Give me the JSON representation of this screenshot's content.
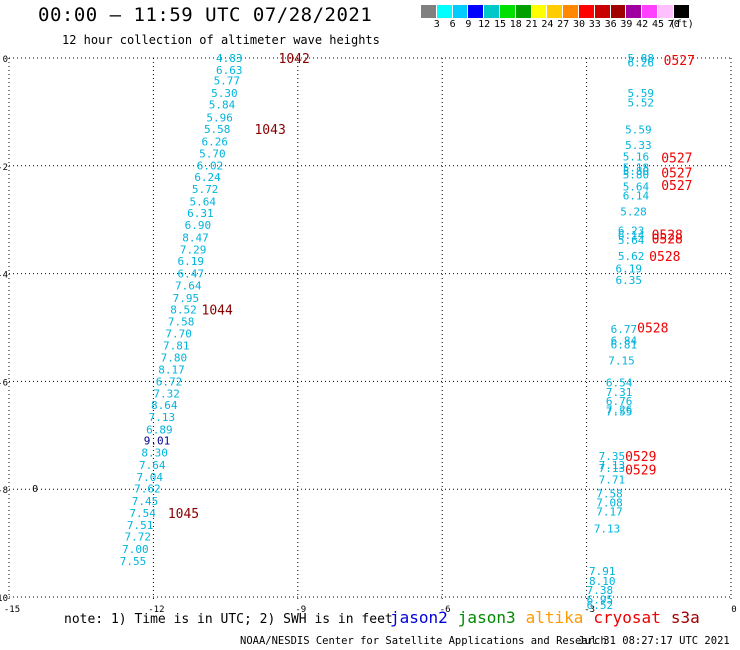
{
  "header": {
    "title": "00:00 – 11:59 UTC 07/28/2021",
    "subtitle": "12 hour collection of altimeter wave heights"
  },
  "scale": {
    "colors": [
      "#808080",
      "#00ffff",
      "#00ccff",
      "#0000ff",
      "#00c8c8",
      "#00e000",
      "#00a000",
      "#ffff00",
      "#ffcc00",
      "#ff8800",
      "#ff0000",
      "#c80000",
      "#a00000",
      "#a000a0",
      "#ff40ff",
      "#ffc0ff",
      "#000000"
    ],
    "labels": [
      "3",
      "6",
      "9",
      "12",
      "15",
      "18",
      "21",
      "24",
      "27",
      "30",
      "33",
      "36",
      "39",
      "42",
      "45",
      "70",
      "(ft)"
    ]
  },
  "chart_data": {
    "type": "scatter",
    "title": "00:00 – 11:59 UTC 07/28/2021",
    "subtitle": "12 hour collection of altimeter wave heights",
    "xlim": [
      -15,
      0
    ],
    "ylim": [
      -10,
      0
    ],
    "x_ticks": [
      "-15",
      "-12",
      "-9",
      "-6",
      "-3",
      "0"
    ],
    "y_ticks": [
      "0",
      "-2",
      "-4",
      "-6",
      "-8",
      "-10"
    ],
    "swh_color": "#00b4dc",
    "swh_color_dark": "#000090",
    "time_color": "#880000",
    "time_color_bright": "#ee0000",
    "swh_points": [
      {
        "x": -10.7,
        "y": 0.0,
        "v": "4.83"
      },
      {
        "x": -10.7,
        "y": -0.22,
        "v": "6.63"
      },
      {
        "x": -10.75,
        "y": -0.42,
        "v": "5.77"
      },
      {
        "x": -10.8,
        "y": -0.65,
        "v": "5.30"
      },
      {
        "x": -10.85,
        "y": -0.86,
        "v": "5.84"
      },
      {
        "x": -10.9,
        "y": -1.1,
        "v": "5.96"
      },
      {
        "x": -10.95,
        "y": -1.32,
        "v": "5.58"
      },
      {
        "x": -11.0,
        "y": -1.55,
        "v": "6.26"
      },
      {
        "x": -11.05,
        "y": -1.77,
        "v": "5.70"
      },
      {
        "x": -11.1,
        "y": -1.99,
        "v": "6.02"
      },
      {
        "x": -11.15,
        "y": -2.21,
        "v": "6.24"
      },
      {
        "x": -11.2,
        "y": -2.43,
        "v": "5.72"
      },
      {
        "x": -11.25,
        "y": -2.66,
        "v": "5.64"
      },
      {
        "x": -11.3,
        "y": -2.88,
        "v": "6.31"
      },
      {
        "x": -11.35,
        "y": -3.1,
        "v": "6.90"
      },
      {
        "x": -11.4,
        "y": -3.33,
        "v": "8.47"
      },
      {
        "x": -11.45,
        "y": -3.55,
        "v": "7.29"
      },
      {
        "x": -11.5,
        "y": -3.77,
        "v": "6.19"
      },
      {
        "x": -11.5,
        "y": -4.0,
        "v": "6.47"
      },
      {
        "x": -11.55,
        "y": -4.22,
        "v": "7.64"
      },
      {
        "x": -11.6,
        "y": -4.45,
        "v": "7.95"
      },
      {
        "x": -11.65,
        "y": -4.67,
        "v": "8.52"
      },
      {
        "x": -11.7,
        "y": -4.89,
        "v": "7.58"
      },
      {
        "x": -11.75,
        "y": -5.11,
        "v": "7.70"
      },
      {
        "x": -11.8,
        "y": -5.33,
        "v": "7.81"
      },
      {
        "x": -11.85,
        "y": -5.56,
        "v": "7.80"
      },
      {
        "x": -11.9,
        "y": -5.78,
        "v": "8.17"
      },
      {
        "x": -11.95,
        "y": -6.0,
        "v": "6.72"
      },
      {
        "x": -12.0,
        "y": -6.22,
        "v": "7.32"
      },
      {
        "x": -12.05,
        "y": -6.44,
        "v": "8.64"
      },
      {
        "x": -12.1,
        "y": -6.66,
        "v": "7.13"
      },
      {
        "x": -12.15,
        "y": -6.89,
        "v": "6.89"
      },
      {
        "x": -12.2,
        "y": -7.1,
        "v": "9.01",
        "dark": true
      },
      {
        "x": -12.25,
        "y": -7.32,
        "v": "8.30"
      },
      {
        "x": -12.3,
        "y": -7.55,
        "v": "7.64"
      },
      {
        "x": -12.35,
        "y": -7.77,
        "v": "7.04"
      },
      {
        "x": -12.4,
        "y": -7.99,
        "v": "7.62"
      },
      {
        "x": -12.45,
        "y": -8.22,
        "v": "7.45"
      },
      {
        "x": -12.5,
        "y": -8.44,
        "v": "7.54"
      },
      {
        "x": -12.55,
        "y": -8.66,
        "v": "7.51"
      },
      {
        "x": -12.6,
        "y": -8.88,
        "v": "7.72"
      },
      {
        "x": -12.65,
        "y": -9.11,
        "v": "7.00"
      },
      {
        "x": -12.7,
        "y": -9.33,
        "v": "7.55"
      },
      {
        "x": -2.15,
        "y": 0.0,
        "v": "5.88"
      },
      {
        "x": -2.15,
        "y": -0.08,
        "v": "6.26"
      },
      {
        "x": -2.15,
        "y": -0.65,
        "v": "5.59"
      },
      {
        "x": -2.15,
        "y": -0.83,
        "v": "5.52"
      },
      {
        "x": -2.2,
        "y": -1.33,
        "v": "5.59"
      },
      {
        "x": -2.2,
        "y": -1.61,
        "v": "5.33"
      },
      {
        "x": -2.25,
        "y": -1.83,
        "v": "5.16"
      },
      {
        "x": -2.25,
        "y": -2.03,
        "v": "5.18"
      },
      {
        "x": -2.25,
        "y": -2.1,
        "v": "5.80"
      },
      {
        "x": -2.25,
        "y": -2.16,
        "v": "5.80"
      },
      {
        "x": -2.25,
        "y": -2.38,
        "v": "5.64"
      },
      {
        "x": -2.25,
        "y": -2.55,
        "v": "6.14"
      },
      {
        "x": -2.3,
        "y": -2.85,
        "v": "5.28"
      },
      {
        "x": -2.35,
        "y": -3.2,
        "v": "6.23"
      },
      {
        "x": -2.35,
        "y": -3.28,
        "v": "6.14"
      },
      {
        "x": -2.35,
        "y": -3.38,
        "v": "5.64"
      },
      {
        "x": -2.35,
        "y": -3.67,
        "v": "5.62"
      },
      {
        "x": -2.4,
        "y": -3.91,
        "v": "6.19"
      },
      {
        "x": -2.4,
        "y": -4.12,
        "v": "6.35"
      },
      {
        "x": -2.5,
        "y": -5.03,
        "v": "6.77"
      },
      {
        "x": -2.5,
        "y": -5.24,
        "v": "6.84"
      },
      {
        "x": -2.5,
        "y": -5.32,
        "v": "6.81"
      },
      {
        "x": -2.55,
        "y": -5.61,
        "v": "7.15"
      },
      {
        "x": -2.6,
        "y": -6.02,
        "v": "6.54"
      },
      {
        "x": -2.6,
        "y": -6.2,
        "v": "7.31"
      },
      {
        "x": -2.6,
        "y": -6.36,
        "v": "6.76"
      },
      {
        "x": -2.6,
        "y": -6.52,
        "v": "7.26"
      },
      {
        "x": -2.6,
        "y": -6.56,
        "v": "7.55"
      },
      {
        "x": -2.75,
        "y": -7.38,
        "v": "7.35"
      },
      {
        "x": -2.75,
        "y": -7.55,
        "v": "7.13"
      },
      {
        "x": -2.75,
        "y": -7.61,
        "v": "7.13"
      },
      {
        "x": -2.75,
        "y": -7.82,
        "v": "7.71"
      },
      {
        "x": -2.8,
        "y": -8.08,
        "v": "7.58"
      },
      {
        "x": -2.8,
        "y": -8.25,
        "v": "7.08"
      },
      {
        "x": -2.8,
        "y": -8.41,
        "v": "7.17"
      },
      {
        "x": -2.85,
        "y": -8.73,
        "v": "7.13"
      },
      {
        "x": -2.95,
        "y": -9.52,
        "v": "7.91"
      },
      {
        "x": -2.95,
        "y": -9.7,
        "v": "8.10"
      },
      {
        "x": -3.0,
        "y": -9.87,
        "v": "7.38"
      },
      {
        "x": -3.0,
        "y": -10.05,
        "v": "6.95"
      },
      {
        "x": -3.0,
        "y": -10.15,
        "v": "6.52"
      }
    ],
    "time_labels": [
      {
        "x": -9.4,
        "y": 0.0,
        "v": "1042"
      },
      {
        "x": -9.9,
        "y": -1.32,
        "v": "1043"
      },
      {
        "x": -11.0,
        "y": -4.67,
        "v": "1044"
      },
      {
        "x": -11.7,
        "y": -8.44,
        "v": "1045"
      },
      {
        "x": -1.4,
        "y": -0.04,
        "v": "0527",
        "bright": true
      },
      {
        "x": -1.45,
        "y": -1.85,
        "v": "0527",
        "bright": true
      },
      {
        "x": -1.45,
        "y": -2.12,
        "v": "0527",
        "bright": true
      },
      {
        "x": -1.45,
        "y": -2.36,
        "v": "0527",
        "bright": true
      },
      {
        "x": -1.65,
        "y": -3.27,
        "v": "0528",
        "bright": true
      },
      {
        "x": -1.65,
        "y": -3.35,
        "v": "0528",
        "bright": true
      },
      {
        "x": -1.7,
        "y": -3.67,
        "v": "0528",
        "bright": true
      },
      {
        "x": -1.95,
        "y": -5.0,
        "v": "0528",
        "bright": true
      },
      {
        "x": -2.2,
        "y": -7.38,
        "v": "0529",
        "bright": true
      },
      {
        "x": -2.2,
        "y": -7.63,
        "v": "0529",
        "bright": true
      }
    ],
    "markers": [
      {
        "x": -14.5,
        "y": -8.0,
        "v": "0"
      }
    ]
  },
  "footer": {
    "note": "note: 1) Time is in UTC; 2) SWH is in feet",
    "satellites": [
      {
        "name": "jason2",
        "color": "#0000dd"
      },
      {
        "name": "jason3",
        "color": "#008800"
      },
      {
        "name": "altika",
        "color": "#ff9900"
      },
      {
        "name": "cryosat",
        "color": "#ee0000"
      },
      {
        "name": "s3a",
        "color": "#a00000"
      }
    ],
    "credit": "NOAA/NESDIS Center for Satellite Applications and Research",
    "timestamp": "Jul 31 08:27:17 UTC 2021"
  }
}
